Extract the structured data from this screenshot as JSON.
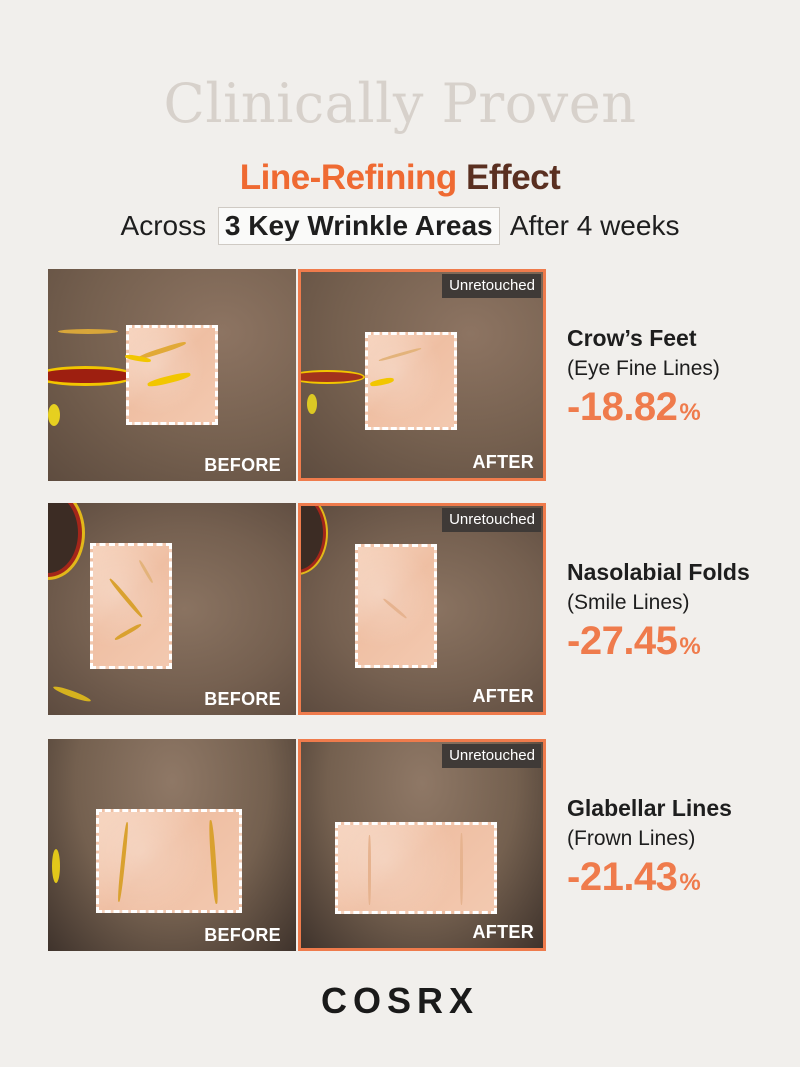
{
  "header": {
    "eyebrow": "Clinically Proven",
    "headline_accent": "Line-Refining",
    "headline_rest": " Effect",
    "sub_before": "Across",
    "sub_highlight": "3 Key Wrinkle Areas",
    "sub_after": "After 4 weeks"
  },
  "labels": {
    "before": "BEFORE",
    "after": "AFTER",
    "badge": "Unretouched"
  },
  "results": [
    {
      "area": "Crow’s Feet",
      "subtitle": "(Eye Fine Lines)",
      "value": "-18.82",
      "unit": "%"
    },
    {
      "area": "Nasolabial Folds",
      "subtitle": "(Smile Lines)",
      "value": "-27.45",
      "unit": "%"
    },
    {
      "area": "Glabellar Lines",
      "subtitle": "(Frown Lines)",
      "value": "-21.43",
      "unit": "%"
    }
  ],
  "colors": {
    "accent": "#ef7b4c",
    "headline_dark": "#5a2f20",
    "background": "#f1efec"
  },
  "brand": "COSRX"
}
